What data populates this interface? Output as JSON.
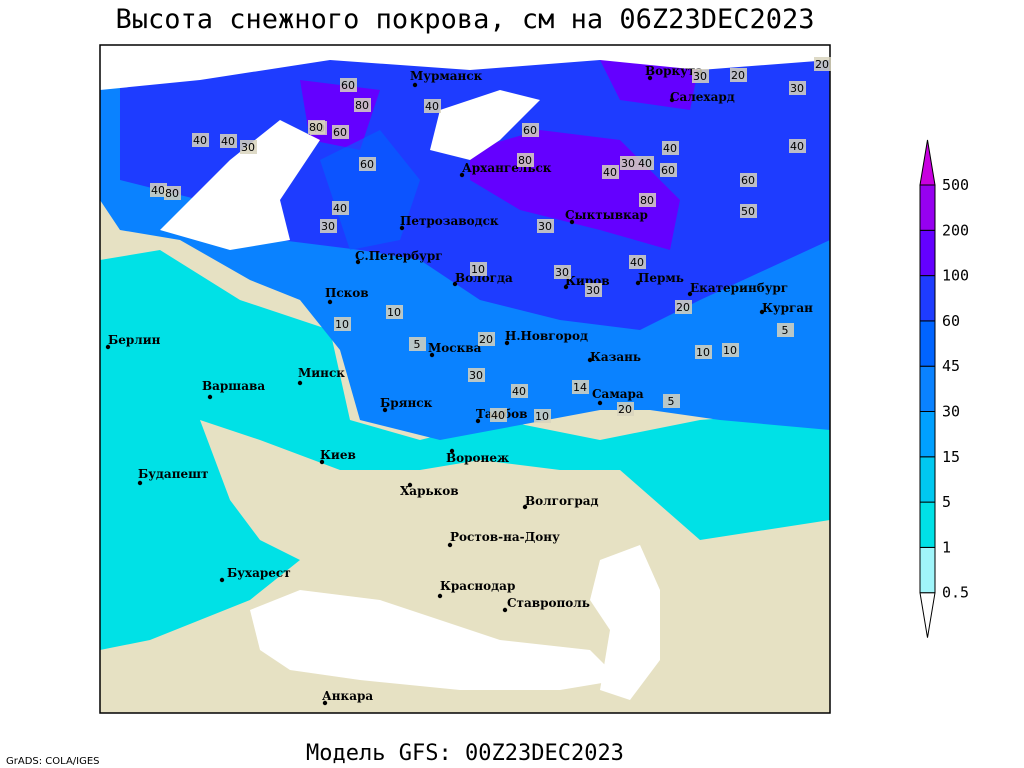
{
  "header": {
    "title": "Высота снежного покрова, см на 06Z23DEC2023"
  },
  "footer": {
    "model": "Модель GFS: 00Z23DEC2023",
    "credit": "GrADS: COLA/IGES"
  },
  "colorbar": {
    "levels": [
      0.5,
      1,
      5,
      15,
      30,
      45,
      60,
      100,
      200,
      500
    ],
    "colors": [
      "#ffffff",
      "#a0f5fa",
      "#00e1e6",
      "#00c8f0",
      "#00a0ff",
      "#0a82ff",
      "#0064ff",
      "#1e3cff",
      "#6400ff",
      "#9600f0",
      "#c800e0"
    ]
  },
  "cities": [
    "Мурманск",
    "Воркута",
    "Салехард",
    "Архангельск",
    "Сыктывкар",
    "Петрозаводск",
    "С.Петербург",
    "Вологда",
    "Киров",
    "Пермь",
    "Екатеринбург",
    "Курган",
    "Псков",
    "Берлин",
    "Н.Новгород",
    "Москва",
    "Казань",
    "Варшава",
    "Минск",
    "Брянск",
    "Тамбов",
    "Самара",
    "Киев",
    "Воронеж",
    "Будапешт",
    "Харьков",
    "Волгоград",
    "Ростов-на-Дону",
    "Бухарест",
    "Краснодар",
    "Ставрополь",
    "Анкара"
  ],
  "contour_labels": [
    40,
    60,
    80,
    40,
    40,
    40,
    30,
    40,
    80,
    60,
    80,
    40,
    60,
    60,
    80,
    40,
    30,
    40,
    80,
    60,
    40,
    30,
    20,
    30,
    20,
    40,
    60,
    50,
    30,
    40,
    30,
    10,
    30,
    30,
    20,
    10,
    10,
    5,
    20,
    30,
    40,
    14,
    20,
    5,
    10,
    10,
    5,
    10,
    40
  ]
}
